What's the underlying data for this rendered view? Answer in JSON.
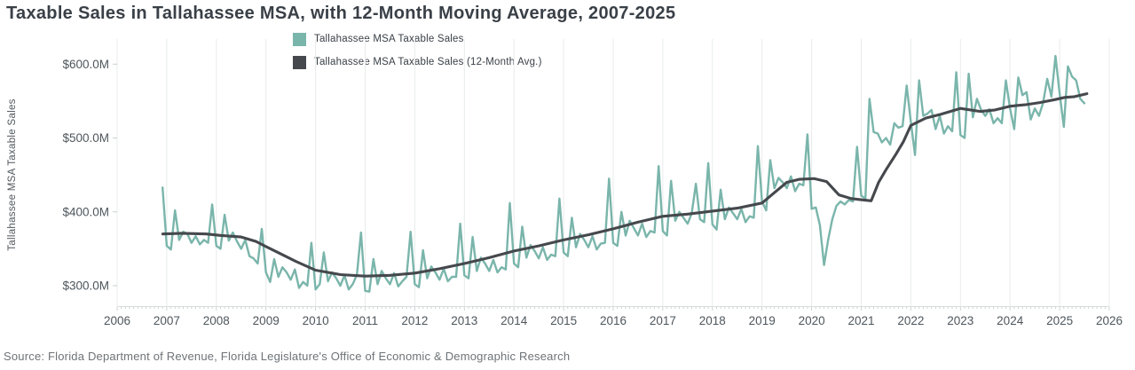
{
  "title": "Taxable Sales in Tallahassee MSA, with 12-Month Moving Average, 2007-2025",
  "source_note": "Source: Florida Department of Revenue, Florida Legislature's Office of Economic & Demographic Research",
  "colors": {
    "monthly_series": "#7ab5ab",
    "average_series": "#45484c",
    "gridline": "#e9ebeb",
    "axis_line": "#d9dcdc",
    "minor_tick": "#c9cdd0",
    "tick_label": "#4d565c",
    "title_text": "#3a4047",
    "source_text": "#6e7377"
  },
  "legend": {
    "items": [
      {
        "label": "Tallahassee MSA Taxable Sales",
        "color": "#7ab5ab"
      },
      {
        "label": "Tallahassee MSA Taxable Sales (12-Month Avg.)",
        "color": "#45484c"
      }
    ]
  },
  "chart_data": {
    "type": "line",
    "title": "Taxable Sales in Tallahassee MSA, with 12-Month Moving Average, 2007-2025",
    "ylabel": "Tallahassee MSA Taxable Sales",
    "unit": "$M",
    "grid": "vertical-years-only",
    "legend_position": "top-center-left",
    "y_axis": {
      "tick_values": [
        600,
        500,
        400,
        300
      ],
      "tick_labels": [
        "$600.0M",
        "$500.0M",
        "$400.0M",
        "$300.0M"
      ],
      "min": 272,
      "max": 628
    },
    "x_axis": {
      "min": 2006,
      "max": 2026,
      "tick_years": [
        2006,
        2007,
        2008,
        2009,
        2010,
        2011,
        2012,
        2013,
        2014,
        2015,
        2016,
        2017,
        2018,
        2019,
        2020,
        2021,
        2022,
        2023,
        2024,
        2025,
        2026
      ]
    },
    "series": [
      {
        "name": "Tallahassee MSA Taxable Sales",
        "color": "#7ab5ab",
        "frequency": "monthly",
        "start": "2006-12",
        "end": "2025-07",
        "values_by_year": {
          "2006": [
            433
          ],
          "2007": [
            354,
            349,
            402,
            362,
            373,
            370,
            358,
            367,
            356,
            362,
            358,
            410
          ],
          "2008": [
            354,
            350,
            396,
            361,
            372,
            360,
            350,
            362,
            340,
            337,
            330,
            377
          ],
          "2009": [
            318,
            305,
            336,
            312,
            325,
            318,
            308,
            322,
            297,
            305,
            300,
            358
          ],
          "2010": [
            295,
            302,
            345,
            306,
            318,
            310,
            300,
            314,
            295,
            302,
            315,
            372
          ],
          "2011": [
            293,
            292,
            336,
            302,
            320,
            310,
            302,
            317,
            299,
            306,
            312,
            373
          ],
          "2012": [
            302,
            298,
            348,
            310,
            326,
            318,
            308,
            323,
            306,
            312,
            312,
            384
          ],
          "2013": [
            314,
            310,
            366,
            320,
            338,
            330,
            320,
            335,
            318,
            325,
            322,
            412
          ],
          "2014": [
            330,
            325,
            380,
            338,
            355,
            347,
            337,
            352,
            335,
            342,
            340,
            418
          ],
          "2015": [
            345,
            340,
            392,
            352,
            370,
            362,
            352,
            367,
            349,
            357,
            358,
            445
          ],
          "2016": [
            358,
            354,
            400,
            368,
            388,
            378,
            368,
            384,
            366,
            374,
            372,
            462
          ],
          "2017": [
            374,
            368,
            442,
            388,
            400,
            392,
            384,
            398,
            438,
            390,
            386,
            466
          ],
          "2018": [
            383,
            376,
            430,
            390,
            406,
            398,
            390,
            404,
            386,
            394,
            392,
            489
          ],
          "2019": [
            414,
            402,
            470,
            432,
            446,
            440,
            432,
            448,
            428,
            438,
            436,
            505
          ],
          "2020": [
            404,
            406,
            382,
            328,
            362,
            390,
            408,
            414,
            410,
            416,
            414,
            488
          ],
          "2021": [
            422,
            418,
            553,
            508,
            506,
            494,
            500,
            491,
            520,
            514,
            516,
            571
          ],
          "2022": [
            522,
            477,
            578,
            530,
            533,
            538,
            512,
            530,
            506,
            516,
            509,
            589
          ],
          "2023": [
            504,
            500,
            587,
            528,
            553,
            538,
            530,
            539,
            520,
            527,
            520,
            578
          ],
          "2024": [
            540,
            512,
            582,
            558,
            562,
            525,
            540,
            530,
            548,
            580,
            556,
            611
          ],
          "2025": [
            560,
            515,
            597,
            583,
            578,
            553,
            547
          ]
        }
      },
      {
        "name": "Tallahassee MSA Taxable Sales (12-Month Avg.)",
        "color": "#45484c",
        "frequency": "smoothed-anchor-points",
        "points": [
          [
            2006.92,
            370
          ],
          [
            2007.3,
            371
          ],
          [
            2007.8,
            370
          ],
          [
            2008.1,
            368
          ],
          [
            2008.5,
            366
          ],
          [
            2008.8,
            360
          ],
          [
            2009.0,
            353
          ],
          [
            2009.3,
            343
          ],
          [
            2009.6,
            333
          ],
          [
            2010.0,
            321
          ],
          [
            2010.5,
            315
          ],
          [
            2011.0,
            313
          ],
          [
            2011.5,
            314
          ],
          [
            2012.0,
            317
          ],
          [
            2012.5,
            323
          ],
          [
            2013.0,
            330
          ],
          [
            2013.5,
            338
          ],
          [
            2014.0,
            347
          ],
          [
            2014.5,
            354
          ],
          [
            2015.0,
            362
          ],
          [
            2015.5,
            369
          ],
          [
            2016.0,
            377
          ],
          [
            2016.5,
            386
          ],
          [
            2017.0,
            394
          ],
          [
            2017.5,
            397
          ],
          [
            2018.0,
            401
          ],
          [
            2018.5,
            405
          ],
          [
            2019.0,
            412
          ],
          [
            2019.25,
            426
          ],
          [
            2019.5,
            440
          ],
          [
            2019.75,
            444
          ],
          [
            2020.05,
            445
          ],
          [
            2020.3,
            441
          ],
          [
            2020.55,
            423
          ],
          [
            2020.8,
            418
          ],
          [
            2021.05,
            416
          ],
          [
            2021.2,
            415
          ],
          [
            2021.35,
            440
          ],
          [
            2021.5,
            457
          ],
          [
            2021.7,
            478
          ],
          [
            2021.85,
            495
          ],
          [
            2022.0,
            517
          ],
          [
            2022.3,
            527
          ],
          [
            2022.6,
            532
          ],
          [
            2022.9,
            538
          ],
          [
            2023.0,
            540
          ],
          [
            2023.4,
            536
          ],
          [
            2023.7,
            538
          ],
          [
            2024.0,
            543
          ],
          [
            2024.3,
            545
          ],
          [
            2024.6,
            548
          ],
          [
            2024.9,
            552
          ],
          [
            2025.1,
            555
          ],
          [
            2025.3,
            556
          ],
          [
            2025.55,
            560
          ]
        ]
      }
    ]
  }
}
